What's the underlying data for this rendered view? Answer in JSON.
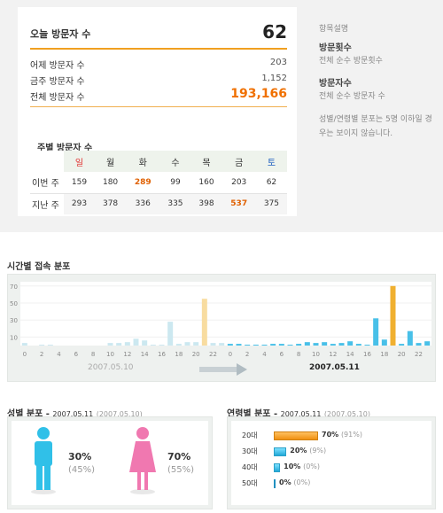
{
  "summary": {
    "today_label": "오늘 방문자 수",
    "today_value": "62",
    "rows": [
      {
        "label": "어제 방문자 수",
        "value": "203"
      },
      {
        "label": "금주 방문자 수",
        "value": "1,152"
      },
      {
        "label": "전체 방문자 수",
        "value": "193,166"
      }
    ]
  },
  "weekly": {
    "title": "주별 방문자 수",
    "days": [
      "일",
      "월",
      "화",
      "수",
      "목",
      "금",
      "토"
    ],
    "rows": [
      {
        "label": "이번 주",
        "values": [
          "159",
          "180",
          "289",
          "99",
          "160",
          "203",
          "62"
        ],
        "highlight_index": 2
      },
      {
        "label": "지난 주",
        "values": [
          "293",
          "378",
          "336",
          "335",
          "398",
          "537",
          "375"
        ],
        "highlight_index": 5
      }
    ]
  },
  "help": {
    "title": "항목설명",
    "items": [
      {
        "term": "방문횟수",
        "desc": "전체 순수 방문횟수"
      },
      {
        "term": "방문자수",
        "desc": "전체 순수 방문자 수"
      }
    ],
    "note": "성별/연령별 분포는 5명 이하일 경우는 보이지 않습니다."
  },
  "hourly": {
    "title": "시간별 접속 분포",
    "date_prev": "2007.05.10",
    "date_curr": "2007.05.11",
    "y_ticks": [
      "70",
      "50",
      "30",
      "10"
    ],
    "x_ticks": [
      "0",
      "2",
      "4",
      "6",
      "8",
      "10",
      "12",
      "14",
      "16",
      "18",
      "20",
      "22"
    ],
    "colors": {
      "prev_bar": "#cce8f0",
      "prev_peak": "#f8dca0",
      "curr_bar": "#48c0e8",
      "curr_peak": "#f0b030"
    }
  },
  "chart_data": {
    "type": "bar",
    "title": "시간별 접속 분포",
    "ylim": [
      0,
      75
    ],
    "series": [
      {
        "name": "2007.05.10",
        "x": [
          0,
          1,
          2,
          3,
          4,
          5,
          6,
          7,
          8,
          9,
          10,
          11,
          12,
          13,
          14,
          15,
          16,
          17,
          18,
          19,
          20,
          21,
          22,
          23
        ],
        "values": [
          3,
          0,
          1,
          1,
          0,
          0,
          0,
          0,
          0,
          0,
          3,
          3,
          4,
          8,
          6,
          1,
          1,
          28,
          2,
          4,
          4,
          55,
          3,
          3
        ]
      },
      {
        "name": "2007.05.11",
        "x": [
          0,
          1,
          2,
          3,
          4,
          5,
          6,
          7,
          8,
          9,
          10,
          11,
          12,
          13,
          14,
          15,
          16,
          17,
          18,
          19,
          20,
          21,
          22,
          23
        ],
        "values": [
          2,
          2,
          1,
          1,
          1,
          2,
          2,
          1,
          2,
          4,
          3,
          4,
          2,
          3,
          5,
          2,
          1,
          32,
          7,
          70,
          2,
          17,
          3,
          5
        ]
      }
    ],
    "x_ticks": [
      "0",
      "2",
      "4",
      "6",
      "8",
      "10",
      "12",
      "14",
      "16",
      "18",
      "20",
      "22"
    ],
    "y_ticks": [
      70,
      50,
      30,
      10
    ]
  },
  "gender": {
    "title": "성별 분포",
    "date": "2007.05.11",
    "date_prev": "(2007.05.10)",
    "male": {
      "pct": "30%",
      "prev": "(45%)"
    },
    "female": {
      "pct": "70%",
      "prev": "(55%)"
    },
    "colors": {
      "male": "#30c0e8",
      "female": "#f078b0"
    }
  },
  "age": {
    "title": "연령별 분포",
    "date": "2007.05.11",
    "date_prev": "(2007.05.10)",
    "rows": [
      {
        "label": "20대",
        "pct": "70%",
        "prev": "(91%)",
        "value": 70,
        "style": "orange"
      },
      {
        "label": "30대",
        "pct": "20%",
        "prev": "(9%)",
        "value": 20,
        "style": "blue"
      },
      {
        "label": "40대",
        "pct": "10%",
        "prev": "(0%)",
        "value": 10,
        "style": "blue"
      },
      {
        "label": "50대",
        "pct": "0%",
        "prev": "(0%)",
        "value": 0,
        "style": "thin"
      }
    ]
  }
}
